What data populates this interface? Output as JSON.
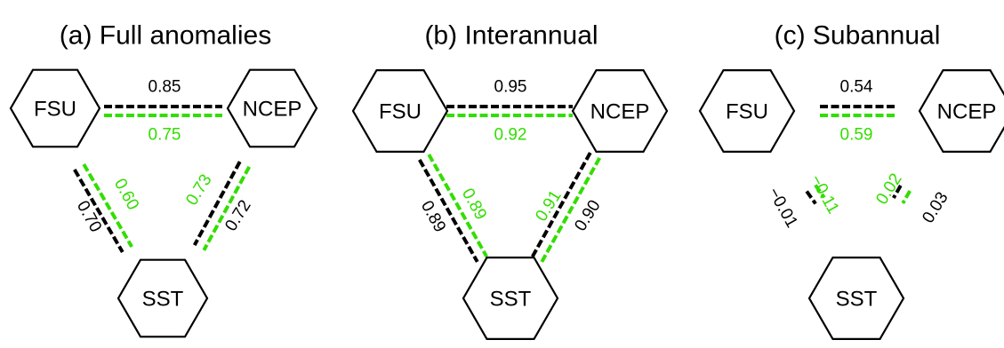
{
  "colors": {
    "black_series": "#000000",
    "green_series": "#33dd00",
    "background": "#ffffff"
  },
  "panels": [
    {
      "title": "(a) Full anomalies",
      "nodes": {
        "left": "FSU",
        "right": "NCEP",
        "bottom": "SST"
      },
      "edges": {
        "top": {
          "black": "0.85",
          "green": "0.75"
        },
        "left": {
          "black": "0.70",
          "green": "0.60"
        },
        "right": {
          "black": "0.72",
          "green": "0.73"
        }
      }
    },
    {
      "title": "(b) Interannual",
      "nodes": {
        "left": "FSU",
        "right": "NCEP",
        "bottom": "SST"
      },
      "edges": {
        "top": {
          "black": "0.95",
          "green": "0.92"
        },
        "left": {
          "black": "0.89",
          "green": "0.89"
        },
        "right": {
          "black": "0.90",
          "green": "0.91"
        }
      }
    },
    {
      "title": "(c) Subannual",
      "nodes": {
        "left": "FSU",
        "right": "NCEP",
        "bottom": "SST"
      },
      "edges": {
        "top": {
          "black": "0.54",
          "green": "0.59"
        },
        "left": {
          "black": "−0.01",
          "green": "−0.11"
        },
        "right": {
          "black": "0.03",
          "green": "0.02"
        }
      }
    }
  ]
}
